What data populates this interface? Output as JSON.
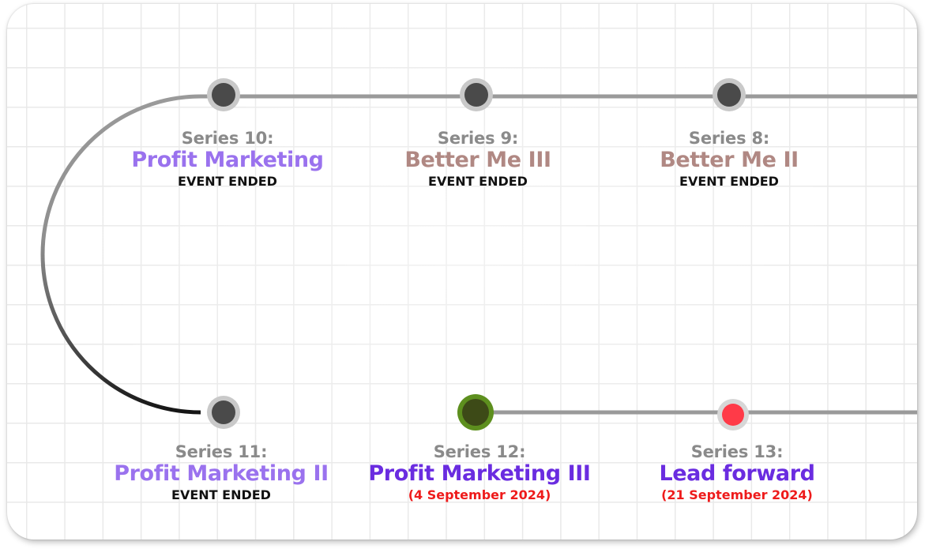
{
  "colors": {
    "title_light_purple": "#9a72ee",
    "title_mauve": "#b08883",
    "title_purple": "#6a2ce0",
    "status_black": "#111111",
    "status_red": "#ee1b1b",
    "node_done": "#4a4a4a",
    "node_current": "#3d4a17",
    "node_current_ring": "#5d8f1e",
    "node_next": "#ff3a48"
  },
  "events": [
    {
      "series": "Series 10:",
      "title": "Profit Marketing",
      "status": "EVENT ENDED",
      "state": "ended"
    },
    {
      "series": "Series 9:",
      "title": "Better Me III",
      "status": "EVENT ENDED",
      "state": "ended"
    },
    {
      "series": "Series 8:",
      "title": "Better Me II",
      "status": "EVENT ENDED",
      "state": "ended"
    },
    {
      "series": "Series 11:",
      "title": "Profit Marketing II",
      "status": "EVENT ENDED",
      "state": "ended"
    },
    {
      "series": "Series 12:",
      "title": "Profit Marketing III",
      "status": "(4 September 2024)",
      "state": "current"
    },
    {
      "series": "Series 13:",
      "title": "Lead forward",
      "status": "(21  September 2024)",
      "state": "upcoming"
    }
  ]
}
